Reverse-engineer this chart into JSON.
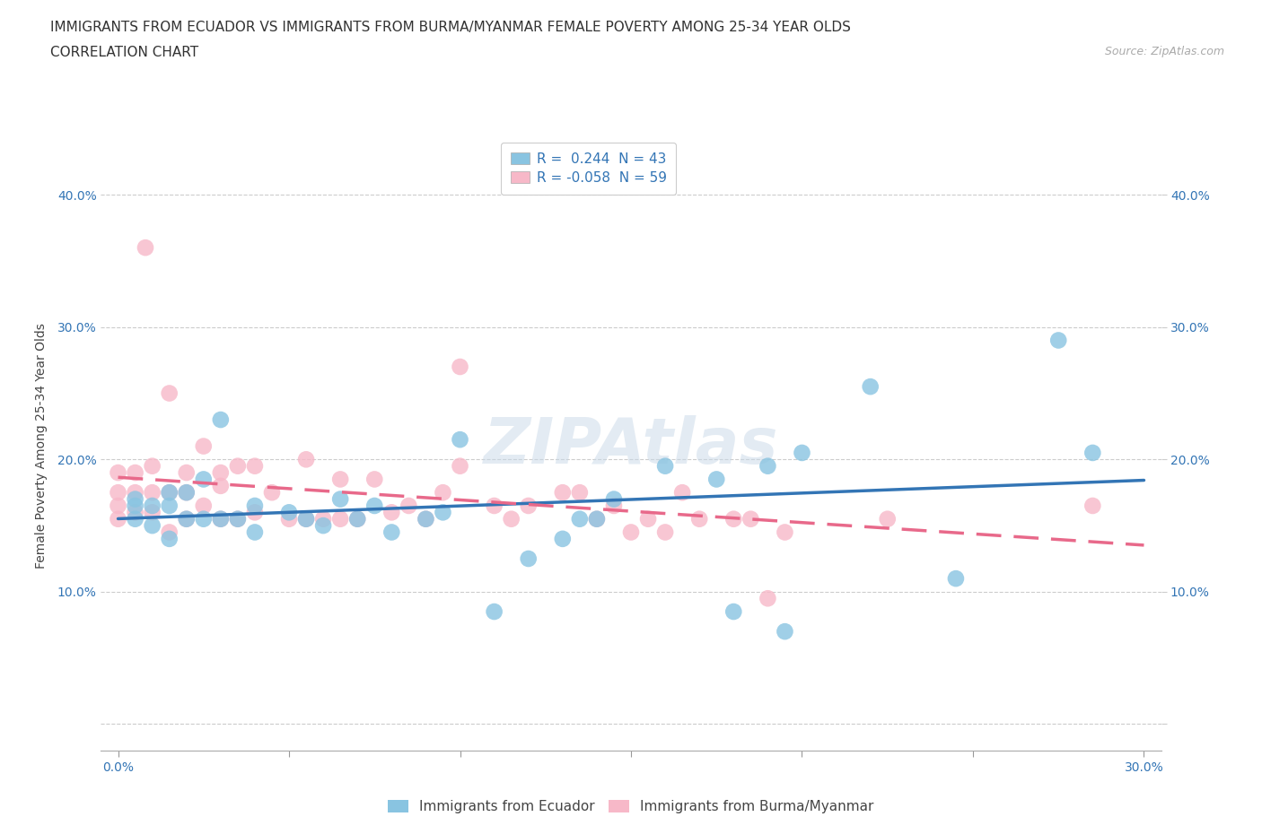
{
  "title_line1": "IMMIGRANTS FROM ECUADOR VS IMMIGRANTS FROM BURMA/MYANMAR FEMALE POVERTY AMONG 25-34 YEAR OLDS",
  "title_line2": "CORRELATION CHART",
  "source_text": "Source: ZipAtlas.com",
  "ylabel": "Female Poverty Among 25-34 Year Olds",
  "xlim": [
    -0.005,
    0.305
  ],
  "ylim": [
    -0.02,
    0.44
  ],
  "ytick_positions": [
    0.0,
    0.1,
    0.2,
    0.3,
    0.4
  ],
  "ytick_labels": [
    "",
    "10.0%",
    "20.0%",
    "30.0%",
    "40.0%"
  ],
  "xtick_positions": [
    0.0,
    0.05,
    0.1,
    0.15,
    0.2,
    0.25,
    0.3
  ],
  "xtick_labels": [
    "0.0%",
    "",
    "",
    "",
    "",
    "",
    "30.0%"
  ],
  "grid_color": "#cccccc",
  "background_color": "#ffffff",
  "ecuador_color": "#89C4E1",
  "ecuador_line_color": "#3375B5",
  "burma_color": "#F7B8C8",
  "burma_line_color": "#E8698A",
  "legend_R_ecuador": "0.244",
  "legend_N_ecuador": "43",
  "legend_R_burma": "-0.058",
  "legend_N_burma": "59",
  "ecuador_label": "Immigrants from Ecuador",
  "burma_label": "Immigrants from Burma/Myanmar",
  "ecuador_x": [
    0.005,
    0.005,
    0.005,
    0.01,
    0.01,
    0.015,
    0.015,
    0.015,
    0.02,
    0.02,
    0.025,
    0.025,
    0.03,
    0.03,
    0.035,
    0.04,
    0.04,
    0.05,
    0.055,
    0.06,
    0.065,
    0.07,
    0.075,
    0.08,
    0.09,
    0.095,
    0.1,
    0.11,
    0.12,
    0.13,
    0.135,
    0.14,
    0.145,
    0.16,
    0.175,
    0.18,
    0.19,
    0.195,
    0.2,
    0.22,
    0.245,
    0.275,
    0.285
  ],
  "ecuador_y": [
    0.155,
    0.165,
    0.17,
    0.15,
    0.165,
    0.14,
    0.165,
    0.175,
    0.155,
    0.175,
    0.155,
    0.185,
    0.155,
    0.23,
    0.155,
    0.145,
    0.165,
    0.16,
    0.155,
    0.15,
    0.17,
    0.155,
    0.165,
    0.145,
    0.155,
    0.16,
    0.215,
    0.085,
    0.125,
    0.14,
    0.155,
    0.155,
    0.17,
    0.195,
    0.185,
    0.085,
    0.195,
    0.07,
    0.205,
    0.255,
    0.11,
    0.29,
    0.205
  ],
  "burma_x": [
    0.0,
    0.0,
    0.0,
    0.0,
    0.005,
    0.005,
    0.005,
    0.008,
    0.01,
    0.01,
    0.01,
    0.015,
    0.015,
    0.015,
    0.02,
    0.02,
    0.02,
    0.025,
    0.025,
    0.03,
    0.03,
    0.03,
    0.035,
    0.035,
    0.04,
    0.04,
    0.045,
    0.05,
    0.055,
    0.055,
    0.06,
    0.065,
    0.065,
    0.07,
    0.075,
    0.08,
    0.085,
    0.09,
    0.095,
    0.1,
    0.1,
    0.11,
    0.115,
    0.12,
    0.13,
    0.135,
    0.14,
    0.145,
    0.15,
    0.155,
    0.16,
    0.165,
    0.17,
    0.18,
    0.185,
    0.19,
    0.195,
    0.225,
    0.285
  ],
  "burma_y": [
    0.155,
    0.165,
    0.175,
    0.19,
    0.16,
    0.175,
    0.19,
    0.36,
    0.16,
    0.175,
    0.195,
    0.145,
    0.175,
    0.25,
    0.155,
    0.175,
    0.19,
    0.165,
    0.21,
    0.155,
    0.18,
    0.19,
    0.155,
    0.195,
    0.16,
    0.195,
    0.175,
    0.155,
    0.155,
    0.2,
    0.155,
    0.155,
    0.185,
    0.155,
    0.185,
    0.16,
    0.165,
    0.155,
    0.175,
    0.195,
    0.27,
    0.165,
    0.155,
    0.165,
    0.175,
    0.175,
    0.155,
    0.165,
    0.145,
    0.155,
    0.145,
    0.175,
    0.155,
    0.155,
    0.155,
    0.095,
    0.145,
    0.155,
    0.165
  ],
  "title_fontsize": 11,
  "subtitle_fontsize": 11,
  "axis_label_fontsize": 10,
  "tick_fontsize": 10,
  "legend_fontsize": 11
}
